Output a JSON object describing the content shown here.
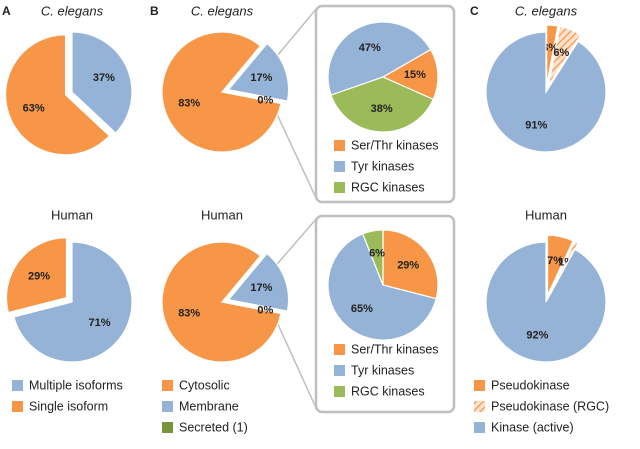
{
  "chart_data": [
    {
      "type": "pie",
      "panel": "A",
      "categories": [
        "Multiple isoforms",
        "Single isoform"
      ],
      "colors": [
        "#95b3d7",
        "#f79646"
      ],
      "explode": [
        false,
        true
      ],
      "pies": [
        {
          "title": "C. elegans",
          "values": [
            37,
            63
          ],
          "value_labels": [
            "37%",
            "63%"
          ]
        },
        {
          "title": "Human",
          "values": [
            71,
            29
          ],
          "value_labels": [
            "71%",
            "29%"
          ]
        }
      ]
    },
    {
      "type": "pie",
      "panel": "B",
      "categories": [
        "Cytosolic",
        "Membrane",
        "Secreted (1)"
      ],
      "colors": [
        "#f79646",
        "#95b3d7",
        "#77933c"
      ],
      "explode": [
        false,
        true,
        true
      ],
      "pies": [
        {
          "title": "C. elegans",
          "values": [
            83,
            17,
            0
          ],
          "value_labels": [
            "83%",
            "17%",
            "0%"
          ]
        },
        {
          "title": "Human",
          "values": [
            83,
            17,
            0
          ],
          "value_labels": [
            "83%",
            "17%",
            "0%"
          ]
        }
      ]
    },
    {
      "type": "pie",
      "categories": [
        "Ser/Thr kinases",
        "Tyr kinases",
        "RGC kinases"
      ],
      "colors": [
        "#f79646",
        "#95b3d7",
        "#9bbb59"
      ],
      "pies": [
        {
          "values": [
            15,
            47,
            38
          ],
          "value_labels": [
            "15%",
            "47%",
            "38%"
          ]
        },
        {
          "values": [
            29,
            65,
            6
          ],
          "value_labels": [
            "29%",
            "65%",
            "6%"
          ]
        }
      ]
    },
    {
      "type": "pie",
      "panel": "C",
      "categories": [
        "Pseudokinase",
        "Pseudokinase (RGC)",
        "Kinase (active)"
      ],
      "colors": [
        "#f79646",
        "#f79646",
        "#95b3d7"
      ],
      "hatch": [
        false,
        true,
        false
      ],
      "explode": [
        true,
        true,
        false
      ],
      "pies": [
        {
          "title": "C. elegans",
          "values": [
            3,
            6,
            91
          ],
          "value_labels": [
            "3%",
            "6%",
            "91%"
          ]
        },
        {
          "title": "Human",
          "values": [
            7,
            1,
            92
          ],
          "value_labels": [
            "7%",
            "1%",
            "92%"
          ]
        }
      ]
    }
  ]
}
